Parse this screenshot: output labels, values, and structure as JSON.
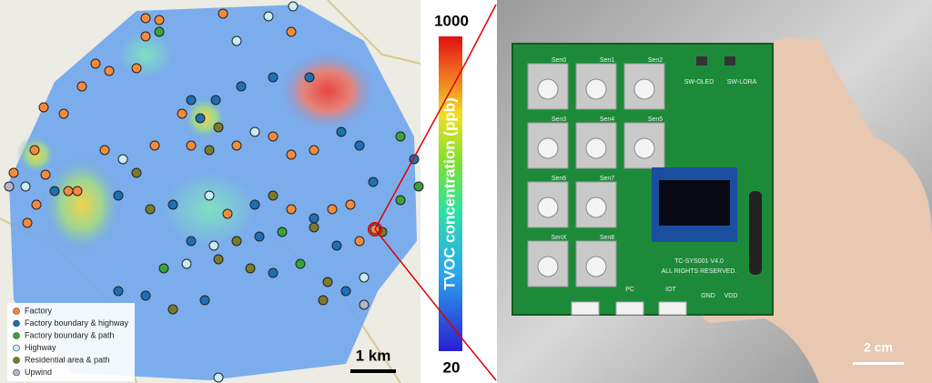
{
  "map": {
    "legend": [
      "Factory",
      "Factory boundary & highway",
      "Factory boundary & path",
      "Highway",
      "Residential area & path",
      "Upwind"
    ],
    "scale": "1 km"
  },
  "colorbar": {
    "max": 1000,
    "min": 20,
    "label": "TVOC concentration (ppb)"
  },
  "board": {
    "sensors": [
      "Sen0",
      "Sen1",
      "Sen2",
      "Sen3",
      "Sen4",
      "Sen5",
      "Sen6",
      "Sen7",
      "SenX",
      "Sen8"
    ],
    "switches": [
      "SW-OLED",
      "SW-LORA"
    ],
    "model": "TC-SYS001 V4.0",
    "rights": "ALL RIGHTS RESERVED.",
    "ports": [
      "PC",
      "IOT"
    ],
    "pins": [
      "GND",
      "VDD"
    ],
    "scale": "2 cm"
  }
}
